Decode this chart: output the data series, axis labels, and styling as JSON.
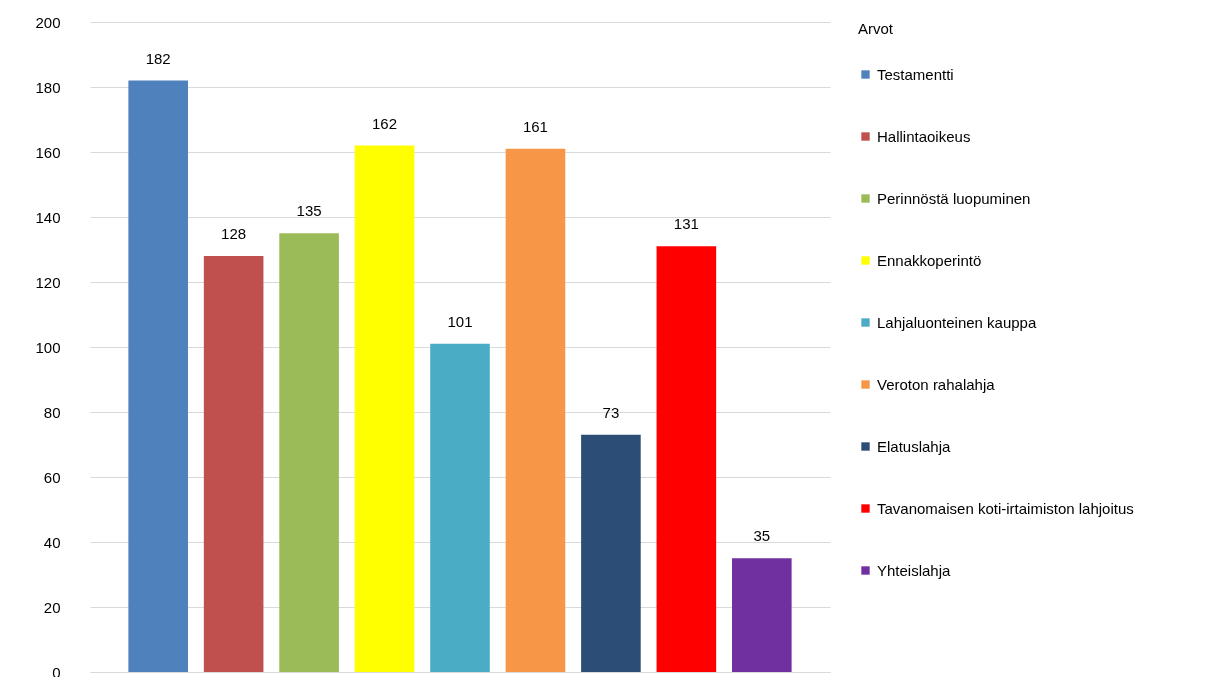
{
  "chart_data": {
    "type": "bar",
    "legend_title": "Arvot",
    "categories": [
      null
    ],
    "series": [
      {
        "name": "Testamentti",
        "color": "#4f81bd",
        "values": [
          182
        ]
      },
      {
        "name": "Hallintaoikeus",
        "color": "#c0504d",
        "values": [
          128
        ]
      },
      {
        "name": "Perinnöstä luopuminen",
        "color": "#9bbb59",
        "values": [
          135
        ]
      },
      {
        "name": "Ennakkoperintö",
        "color": "#ffff00",
        "values": [
          162
        ]
      },
      {
        "name": "Lahjaluonteinen kauppa",
        "color": "#4bacc6",
        "values": [
          101
        ]
      },
      {
        "name": "Veroton rahalahja",
        "color": "#f79646",
        "values": [
          161
        ]
      },
      {
        "name": "Elatuslahja",
        "color": "#2c4d75",
        "values": [
          73
        ]
      },
      {
        "name": "Tavanomaisen koti-irtaimiston lahjoitus",
        "color": "#ff0000",
        "values": [
          131
        ]
      },
      {
        "name": "Yhteislahja",
        "color": "#7030a0",
        "values": [
          35
        ]
      }
    ],
    "ylim": [
      0,
      200
    ],
    "yticks": [
      0,
      20,
      40,
      60,
      80,
      100,
      120,
      140,
      160,
      180,
      200
    ],
    "grid": "y",
    "legend": "right",
    "tick_labels": "y",
    "data_labels": true
  }
}
